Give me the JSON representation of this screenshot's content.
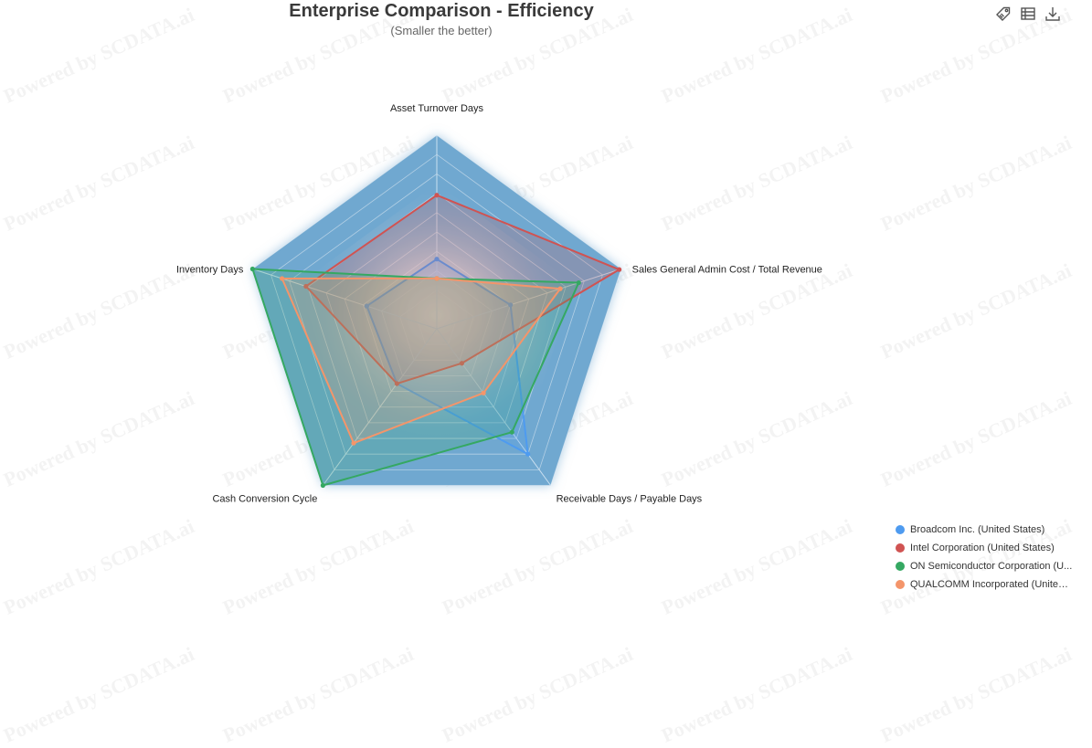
{
  "chart_data": {
    "type": "radar",
    "title": "Enterprise Comparison - Efficiency",
    "subtitle": "(Smaller the better)",
    "indicators": [
      "Asset Turnover Days",
      "Sales General Admin Cost / Total Revenue",
      "Receivable Days / Payable Days",
      "Cash Conversion Cycle",
      "Inventory Days"
    ],
    "scale_max": 1.0,
    "ring_count": 10,
    "legend_position": "bottom-right",
    "series": [
      {
        "name": "Broadcom Inc. (United States)",
        "legend_label": "Broadcom Inc. (United States)",
        "color": "#4e9bf0",
        "values": [
          0.36,
          0.4,
          0.8,
          0.35,
          0.38
        ]
      },
      {
        "name": "Intel Corporation (United States)",
        "legend_label": "Intel Corporation (United States)",
        "color": "#d05352",
        "values": [
          0.69,
          0.99,
          0.22,
          0.35,
          0.71
        ]
      },
      {
        "name": "ON Semiconductor Corporation (United States)",
        "legend_label": "ON Semiconductor Corporation (U...",
        "color": "#35a862",
        "values": [
          0.26,
          0.77,
          0.66,
          1.0,
          1.0
        ]
      },
      {
        "name": "QUALCOMM Incorporated (United States)",
        "legend_label": "QUALCOMM Incorporated (United ...",
        "color": "#f4956a",
        "values": [
          0.26,
          0.67,
          0.41,
          0.73,
          0.84
        ]
      }
    ]
  },
  "watermark_text": "Powered by SCDATA.ai",
  "toolbar": {
    "icons": [
      "tag-icon",
      "table-icon",
      "download-icon"
    ]
  },
  "colors": {
    "radar_fill": "#6fa8d0",
    "axis_line": "#c9dff0"
  }
}
